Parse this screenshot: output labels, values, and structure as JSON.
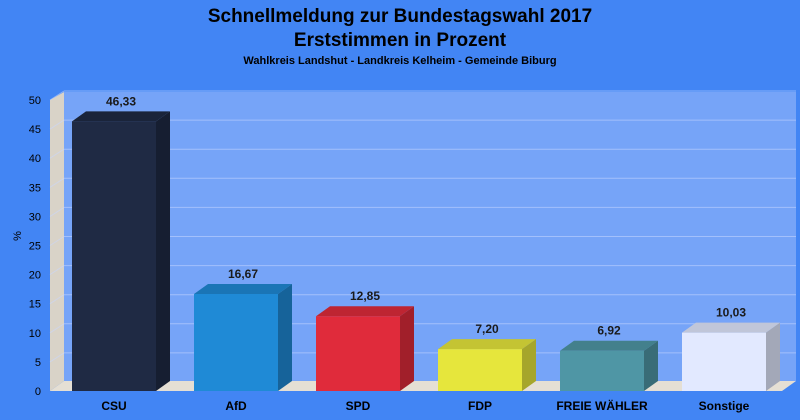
{
  "chart_data": {
    "type": "bar",
    "title": "Schnellmeldung zur Bundestagswahl 2017",
    "title2": "Erststimmen in Prozent",
    "subtitle": "Wahlkreis Landshut - Landkreis Kelheim - Gemeinde Biburg",
    "ylabel": "%",
    "ylim": [
      0,
      50
    ],
    "yticks": [
      0,
      5,
      10,
      15,
      20,
      25,
      30,
      35,
      40,
      45,
      50
    ],
    "categories": [
      "CSU",
      "AfD",
      "SPD",
      "FDP",
      "FREIE WÄHLER",
      "Sonstige"
    ],
    "values": [
      46.33,
      16.67,
      12.85,
      7.2,
      6.92,
      10.03
    ],
    "value_labels": [
      "46,33",
      "16,67",
      "12,85",
      "7,20",
      "6,92",
      "10,03"
    ],
    "colors": [
      "#1f2a44",
      "#1f8ad6",
      "#e02b3b",
      "#e6e63c",
      "#4f96a5",
      "#e2e9ff"
    ],
    "grid": true,
    "legend": "none"
  },
  "colors": {
    "background": "#4285f4",
    "plot_area": "#76a4f8",
    "floor": "#e5dfd4"
  }
}
